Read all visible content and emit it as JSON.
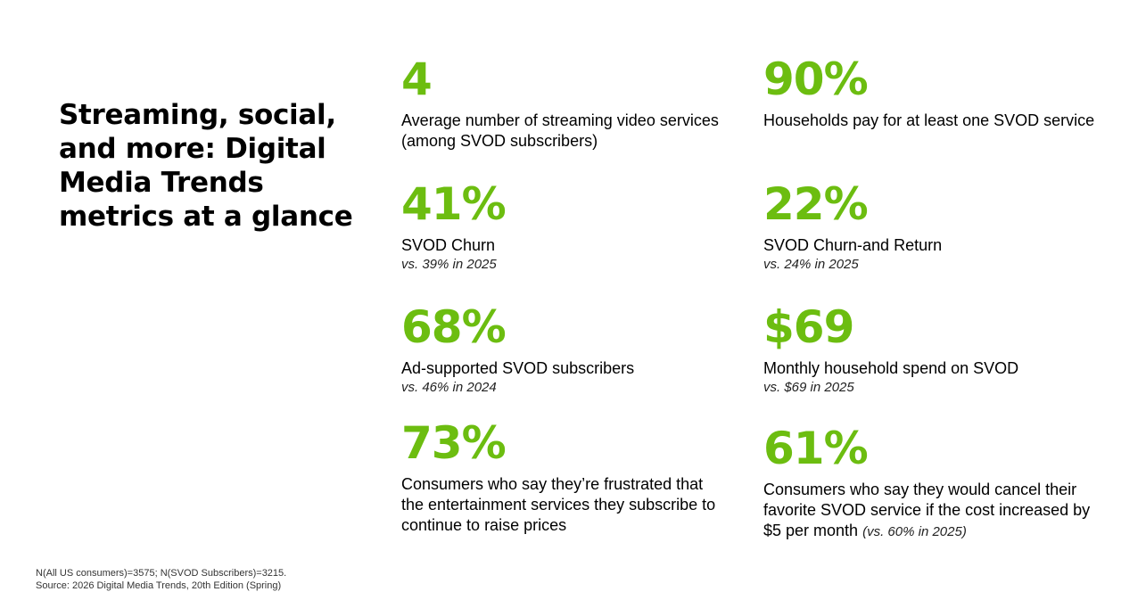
{
  "title": "Streaming, social, and more: Digital Media Trends metrics at a glance",
  "metrics": [
    {
      "value": "4",
      "label": "Average number of streaming video services (among SVOD subscribers)"
    },
    {
      "value": "90%",
      "label": "Households pay for at least one SVOD service"
    },
    {
      "value": "41%",
      "label": "SVOD Churn",
      "compare": "vs. 39% in 2025"
    },
    {
      "value": "22%",
      "label": "SVOD Churn-and Return",
      "compare": "vs. 24% in 2025"
    },
    {
      "value": "68%",
      "label": "Ad-supported SVOD subscribers",
      "compare": "vs. 46% in 2024"
    },
    {
      "value": "$69",
      "label": "Monthly household spend on SVOD",
      "compare": "vs. $69 in 2025"
    },
    {
      "value": "73%",
      "label": "Consumers who say they’re frustrated that the entertainment services they subscribe to continue to raise prices"
    },
    {
      "value": "61%",
      "label": "Consumers who say they would cancel their favorite SVOD service if the cost increased by $5 per month",
      "compare": "(vs. 60% in 2025)"
    }
  ],
  "footer": {
    "line1": "N(All US consumers)=3575; N(SVOD Subscribers)=3215.",
    "line2": "Source: 2026 Digital Media Trends, 20th Edition (Spring)"
  },
  "colors": {
    "accent": "#6cbd10",
    "text": "#000000",
    "background": "#ffffff"
  }
}
